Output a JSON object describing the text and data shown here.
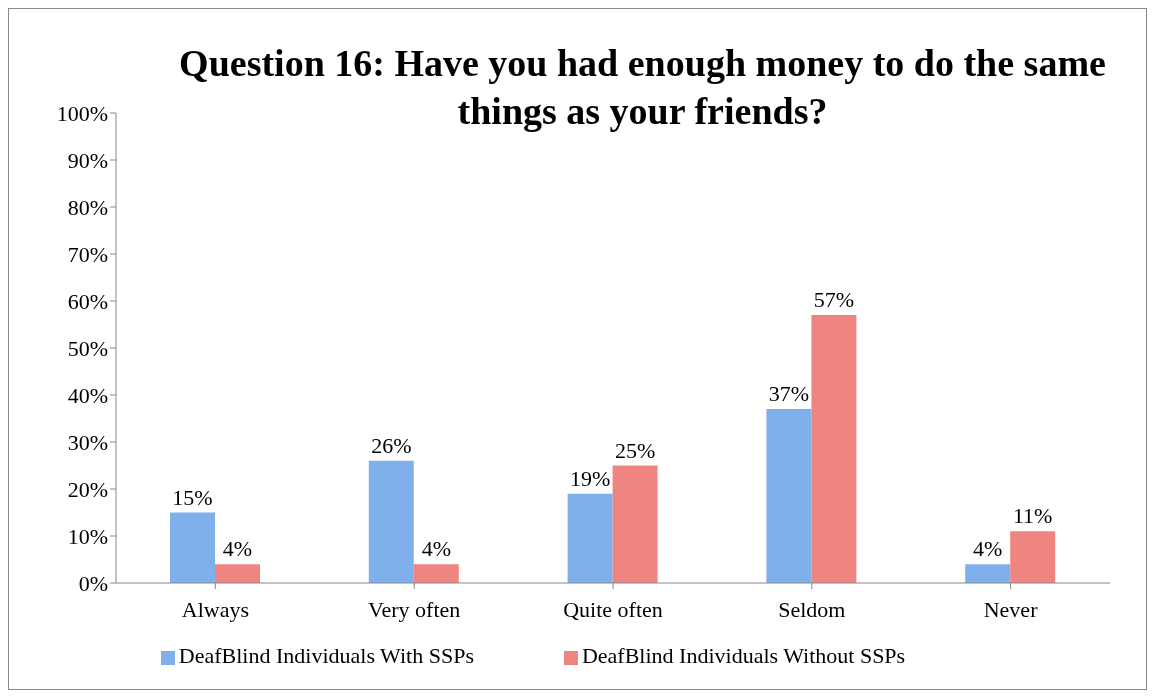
{
  "chart_data": {
    "type": "bar",
    "title": "Question 16: Have you had enough money to do the same things as your friends?",
    "categories": [
      "Always",
      "Very often",
      "Quite often",
      "Seldom",
      "Never"
    ],
    "series": [
      {
        "name": "DeafBlind Individuals With SSPs",
        "color": "#7fb0ec",
        "values": [
          15,
          26,
          19,
          37,
          4
        ],
        "value_labels": [
          "15%",
          "26%",
          "19%",
          "37%",
          "4%"
        ]
      },
      {
        "name": "DeafBlind Individuals Without SSPs",
        "color": "#ee8580",
        "values": [
          4,
          4,
          25,
          57,
          11
        ],
        "value_labels": [
          "4%",
          "4%",
          "25%",
          "57%",
          "11%"
        ]
      }
    ],
    "ylim": [
      0,
      100
    ],
    "yticks": [
      {
        "value": 0,
        "label": "0%"
      },
      {
        "value": 10,
        "label": "10%"
      },
      {
        "value": 20,
        "label": "20%"
      },
      {
        "value": 30,
        "label": "30%"
      },
      {
        "value": 40,
        "label": "40%"
      },
      {
        "value": 50,
        "label": "50%"
      },
      {
        "value": 60,
        "label": "60%"
      },
      {
        "value": 70,
        "label": "70%"
      },
      {
        "value": 80,
        "label": "80%"
      },
      {
        "value": 90,
        "label": "90%"
      },
      {
        "value": 100,
        "label": "100%"
      }
    ],
    "grid": false,
    "legend": "bottom"
  }
}
